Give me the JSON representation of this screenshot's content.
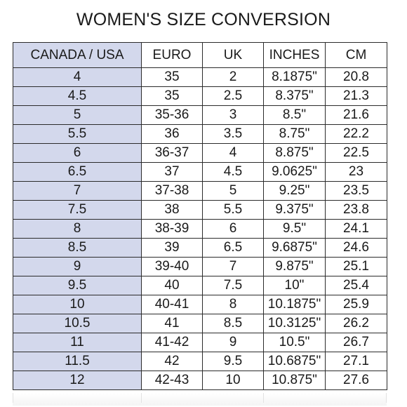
{
  "title": "WOMEN'S SIZE CONVERSION",
  "columns": [
    "CANADA / USA",
    "EURO",
    "UK",
    "INCHES",
    "CM"
  ],
  "rows": [
    [
      "4",
      "35",
      "2",
      "8.1875\"",
      "20.8"
    ],
    [
      "4.5",
      "35",
      "2.5",
      "8.375\"",
      "21.3"
    ],
    [
      "5",
      "35-36",
      "3",
      "8.5\"",
      "21.6"
    ],
    [
      "5.5",
      "36",
      "3.5",
      "8.75\"",
      "22.2"
    ],
    [
      "6",
      "36-37",
      "4",
      "8.875\"",
      "22.5"
    ],
    [
      "6.5",
      "37",
      "4.5",
      "9.0625\"",
      "23"
    ],
    [
      "7",
      "37-38",
      "5",
      "9.25\"",
      "23.5"
    ],
    [
      "7.5",
      "38",
      "5.5",
      "9.375\"",
      "23.8"
    ],
    [
      "8",
      "38-39",
      "6",
      "9.5\"",
      "24.1"
    ],
    [
      "8.5",
      "39",
      "6.5",
      "9.6875\"",
      "24.6"
    ],
    [
      "9",
      "39-40",
      "7",
      "9.875\"",
      "25.1"
    ],
    [
      "9.5",
      "40",
      "7.5",
      "10\"",
      "25.4"
    ],
    [
      "10",
      "40-41",
      "8",
      "10.1875\"",
      "25.9"
    ],
    [
      "10.5",
      "41",
      "8.5",
      "10.3125\"",
      "26.2"
    ],
    [
      "11",
      "41-42",
      "9",
      "10.5\"",
      "26.7"
    ],
    [
      "11.5",
      "42",
      "9.5",
      "10.6875\"",
      "27.1"
    ],
    [
      "12",
      "42-43",
      "10",
      "10.875\"",
      "27.6"
    ]
  ],
  "colors": {
    "first_column_bg": "#d3d8ec",
    "border": "#2b2b2b",
    "text": "#1a1a1a"
  }
}
